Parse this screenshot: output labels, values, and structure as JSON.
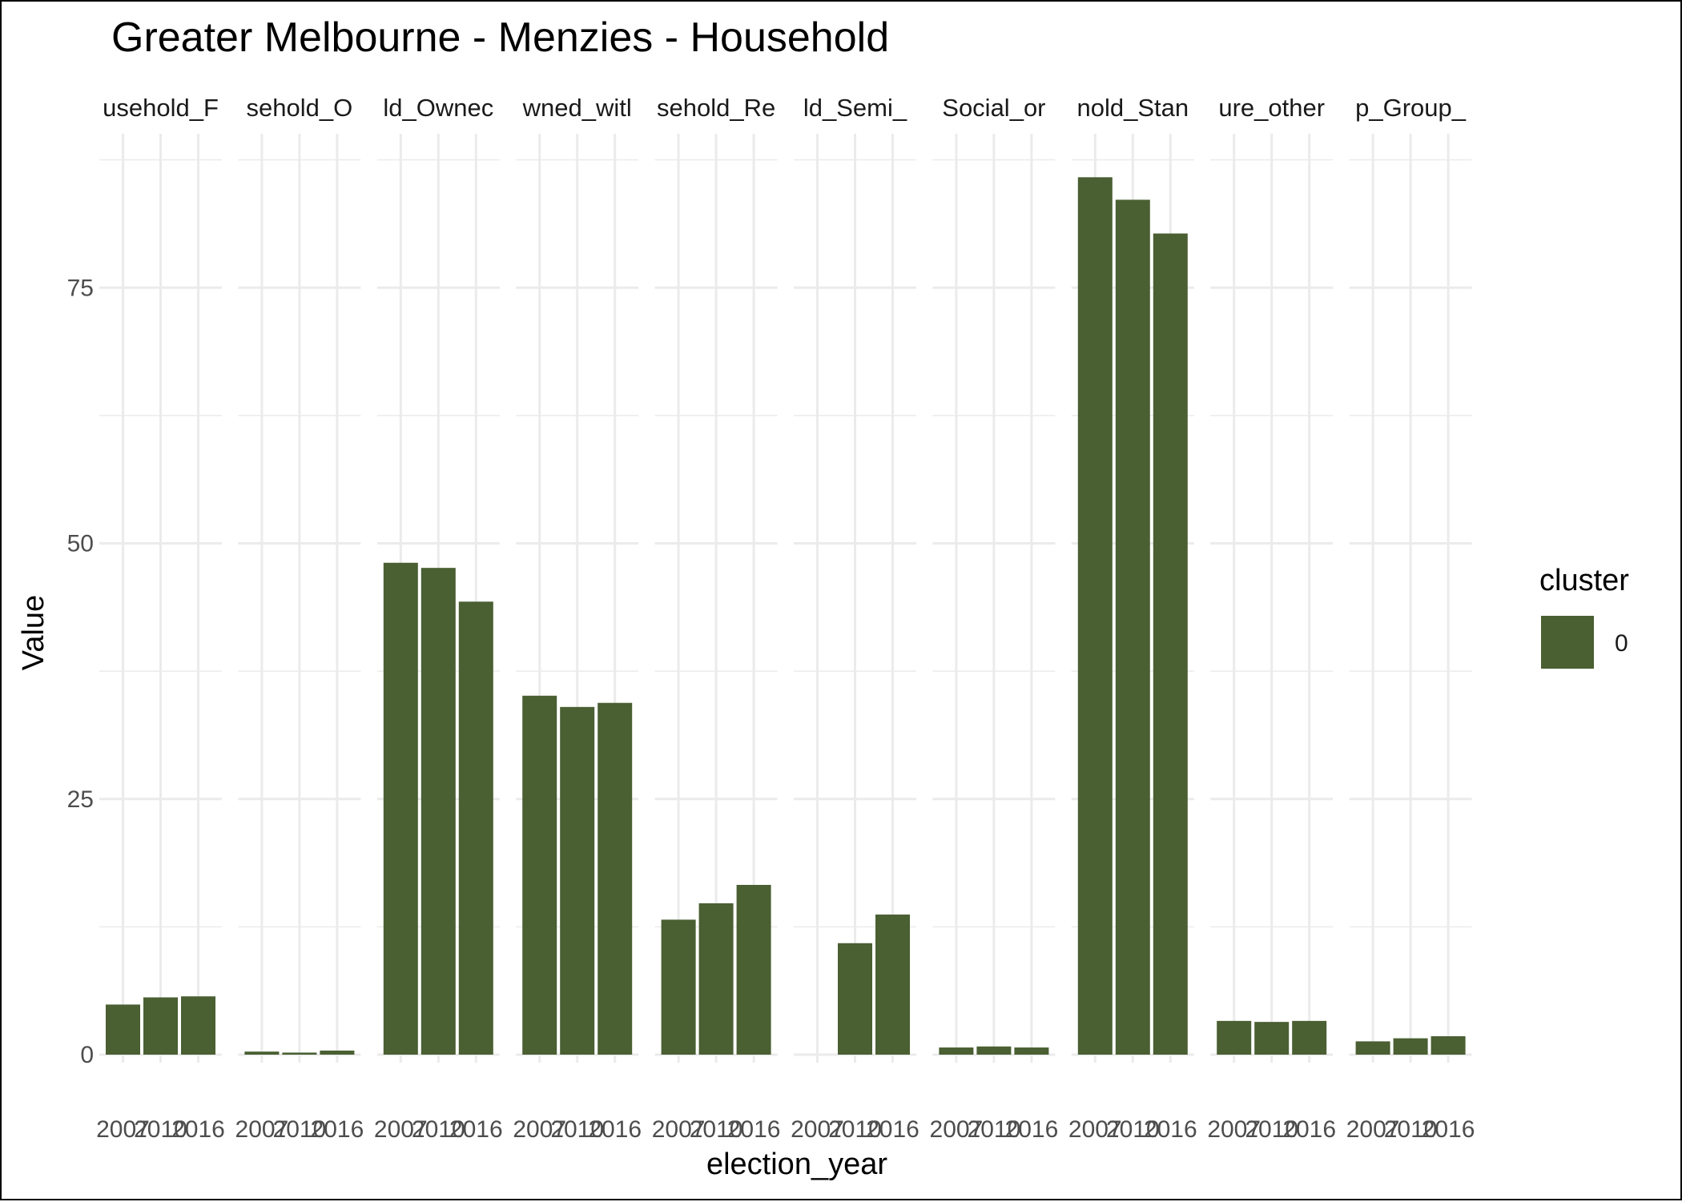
{
  "chart_data": {
    "type": "bar",
    "title": "Greater Melbourne - Menzies - Household",
    "xlabel": "election_year",
    "ylabel": "Value",
    "ylim": [
      0,
      90
    ],
    "yticks": [
      0,
      25,
      50,
      75
    ],
    "grid": true,
    "legend": {
      "title": "cluster",
      "entries": [
        "0"
      ],
      "placement": "right"
    },
    "bar_color": "#4a5f32",
    "categories": [
      "2007",
      "2010",
      "2016"
    ],
    "facets": [
      {
        "label": "usehold_F",
        "values": [
          4.9,
          5.6,
          5.7
        ]
      },
      {
        "label": "sehold_O",
        "values": [
          0.3,
          0.2,
          0.4
        ]
      },
      {
        "label": "ld_Ownec",
        "values": [
          48.1,
          47.6,
          44.3
        ]
      },
      {
        "label": "wned_witl",
        "values": [
          35.1,
          34.0,
          34.4
        ]
      },
      {
        "label": "sehold_Re",
        "values": [
          13.2,
          14.8,
          16.6
        ]
      },
      {
        "label": "ld_Semi_",
        "values": [
          null,
          10.9,
          13.7
        ]
      },
      {
        "label": "Social_or",
        "values": [
          0.7,
          0.8,
          0.7
        ]
      },
      {
        "label": "nold_Stan",
        "values": [
          85.8,
          83.6,
          80.3
        ]
      },
      {
        "label": "ure_other",
        "values": [
          3.3,
          3.2,
          3.3
        ]
      },
      {
        "label": "p_Group_",
        "values": [
          1.3,
          1.6,
          1.8
        ]
      }
    ]
  }
}
